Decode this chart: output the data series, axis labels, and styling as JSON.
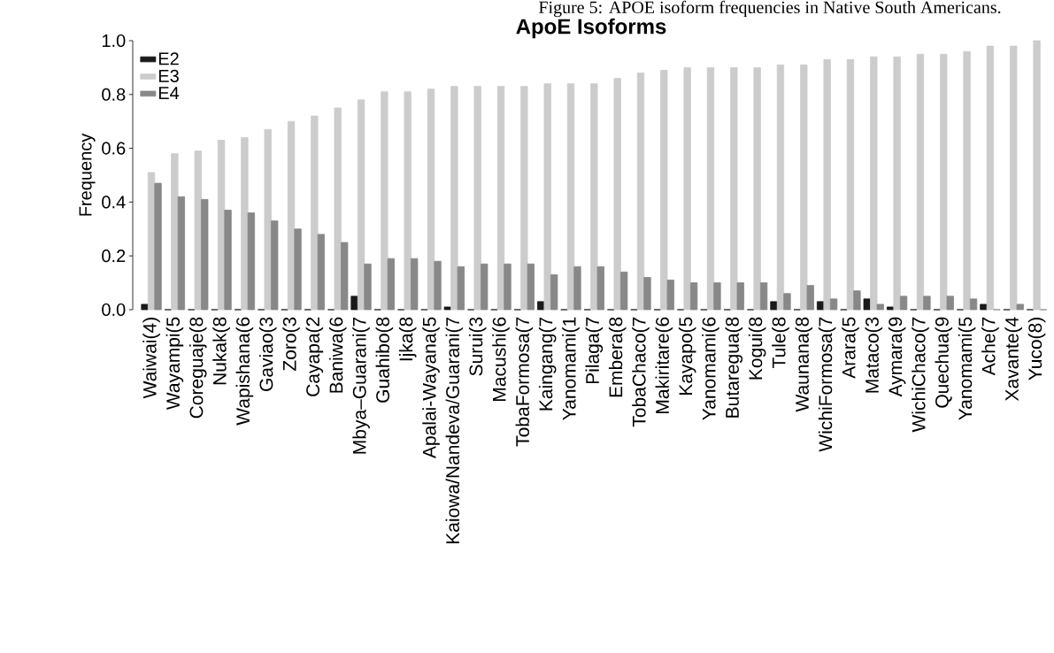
{
  "chart_data": {
    "type": "bar",
    "title": "ApoE Isoforms",
    "annotations": [
      "Figure 5: APOE isoform frequencies in Native South Americans."
    ],
    "ylabel": "Frequency",
    "categories": [
      "Waiwai(4)",
      "Wayampi(5",
      "Coreguaje(8",
      "Nukak(8",
      "Wapishana(6",
      "Gaviao(3",
      "Zoro(3",
      "Cayapa(2",
      "Baniwa(6",
      "Mbya–Guarani(7",
      "Guahibo(8",
      "Ijka(8",
      "Apalai-Wayana(5",
      "Kaiowa/Nandeva/Guarani(7",
      "Surui(3",
      "Macushi(6",
      "TobaFormosa(7",
      "Kaingang(7",
      "Yanomami(1",
      "Pilaga(7",
      "Embera(8",
      "TobaChaco(7",
      "Makiritare(6",
      "Kayapo(5",
      "Yanomami(6",
      "Butaregua(8",
      "Kogui(8",
      "Tule(8",
      "Waunana(8",
      "WichiFormosa(7",
      "Arara(5",
      "Mataco(3",
      "Aymara(9",
      "WichiChaco(7",
      "Quechua(9",
      "Yanomami(5",
      "Ache(7",
      "Xavante(4",
      "Yuco(8)"
    ],
    "series": [
      {
        "name": "E2",
        "color": "#1a1a1a",
        "values": [
          0.02,
          0,
          0,
          0,
          0,
          0,
          0,
          0,
          0,
          0.05,
          0,
          0,
          0,
          0.01,
          0,
          0,
          0,
          0.03,
          0,
          0,
          0,
          0,
          0,
          0,
          0,
          0,
          0,
          0.03,
          0,
          0.03,
          0,
          0.04,
          0.01,
          0,
          0,
          0,
          0.02,
          0,
          0
        ]
      },
      {
        "name": "E3",
        "color": "#cccccc",
        "values": [
          0.51,
          0.58,
          0.59,
          0.63,
          0.64,
          0.67,
          0.7,
          0.72,
          0.75,
          0.78,
          0.81,
          0.81,
          0.82,
          0.83,
          0.83,
          0.83,
          0.83,
          0.84,
          0.84,
          0.84,
          0.86,
          0.88,
          0.89,
          0.9,
          0.9,
          0.9,
          0.9,
          0.91,
          0.91,
          0.93,
          0.93,
          0.94,
          0.94,
          0.95,
          0.95,
          0.96,
          0.98,
          0.98,
          1.0
        ]
      },
      {
        "name": "E4",
        "color": "#888888",
        "values": [
          0.47,
          0.42,
          0.41,
          0.37,
          0.36,
          0.33,
          0.3,
          0.28,
          0.25,
          0.17,
          0.19,
          0.19,
          0.18,
          0.16,
          0.17,
          0.17,
          0.17,
          0.13,
          0.16,
          0.16,
          0.14,
          0.12,
          0.11,
          0.1,
          0.1,
          0.1,
          0.1,
          0.06,
          0.09,
          0.04,
          0.07,
          0.02,
          0.05,
          0.05,
          0.05,
          0.04,
          0,
          0.02,
          0
        ]
      }
    ],
    "ylim": [
      0,
      1
    ],
    "yticks": [
      {
        "value": 0,
        "label": "0.0"
      },
      {
        "value": 0.2,
        "label": "0.2"
      },
      {
        "value": 0.4,
        "label": "0.4"
      },
      {
        "value": 0.6,
        "label": "0.6"
      },
      {
        "value": 0.8,
        "label": "0.8"
      },
      {
        "value": 1,
        "label": "1.0"
      }
    ],
    "legend": "top left"
  }
}
